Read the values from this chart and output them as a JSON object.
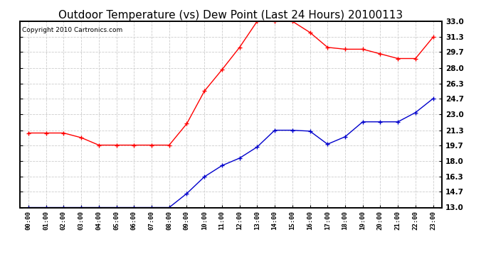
{
  "title": "Outdoor Temperature (vs) Dew Point (Last 24 Hours) 20100113",
  "copyright": "Copyright 2010 Cartronics.com",
  "x_labels": [
    "00:00",
    "01:00",
    "02:00",
    "03:00",
    "04:00",
    "05:00",
    "06:00",
    "07:00",
    "08:00",
    "09:00",
    "10:00",
    "11:00",
    "12:00",
    "13:00",
    "14:00",
    "15:00",
    "16:00",
    "17:00",
    "18:00",
    "19:00",
    "20:00",
    "21:00",
    "22:00",
    "23:00"
  ],
  "temp_data": [
    21.0,
    21.0,
    21.0,
    20.5,
    19.7,
    19.7,
    19.7,
    19.7,
    19.7,
    22.0,
    25.5,
    27.8,
    30.2,
    33.0,
    33.0,
    33.0,
    31.8,
    30.2,
    30.0,
    30.0,
    29.5,
    29.0,
    29.0,
    31.3
  ],
  "dew_data": [
    13.0,
    13.0,
    13.0,
    13.0,
    13.0,
    13.0,
    13.0,
    13.0,
    13.0,
    14.5,
    16.3,
    17.5,
    18.3,
    19.5,
    21.3,
    21.3,
    21.2,
    19.8,
    20.6,
    22.2,
    22.2,
    22.2,
    23.2,
    24.7
  ],
  "temp_color": "#ff0000",
  "dew_color": "#0000cc",
  "y_min": 13.0,
  "y_max": 33.0,
  "y_ticks": [
    13.0,
    14.7,
    16.3,
    18.0,
    19.7,
    21.3,
    23.0,
    24.7,
    26.3,
    28.0,
    29.7,
    31.3,
    33.0
  ],
  "background_color": "#ffffff",
  "grid_color": "#cccccc",
  "title_fontsize": 11,
  "copyright_fontsize": 6.5,
  "tick_fontsize": 7.5,
  "xtick_fontsize": 6.5
}
